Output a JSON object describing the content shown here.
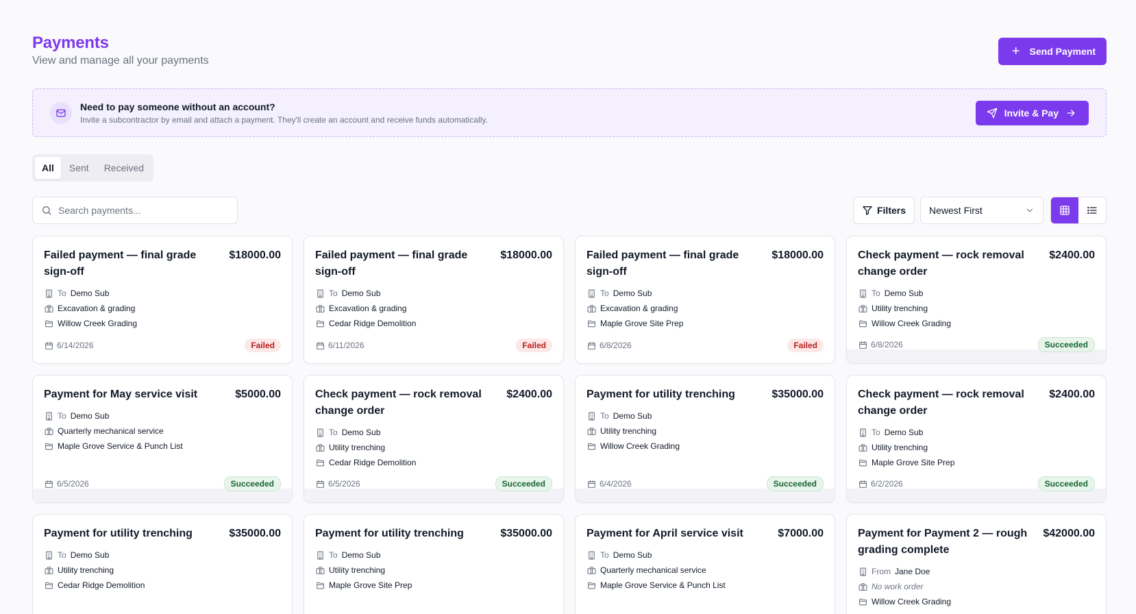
{
  "header": {
    "title": "Payments",
    "subtitle": "View and manage all your payments",
    "send_label": "Send Payment"
  },
  "banner": {
    "title": "Need to pay someone without an account?",
    "description": "Invite a subcontractor by email and attach a payment. They'll create an account and receive funds automatically.",
    "button_label": "Invite & Pay"
  },
  "tabs": [
    {
      "label": "All",
      "active": true
    },
    {
      "label": "Sent",
      "active": false
    },
    {
      "label": "Received",
      "active": false
    }
  ],
  "toolbar": {
    "search_placeholder": "Search payments...",
    "filters_label": "Filters",
    "sort_value": "Newest First",
    "view_mode": "grid"
  },
  "colors": {
    "accent": "#7c3aed",
    "failed": "#b91c1c",
    "succeeded": "#166534"
  },
  "payments": [
    {
      "title": "Failed payment — final grade sign-off",
      "amount": "$18000.00",
      "direction": "To",
      "party": "Demo Sub",
      "work_order": "Excavation & grading",
      "project": "Willow Creek Grading",
      "date": "6/14/2026",
      "status": "Failed"
    },
    {
      "title": "Failed payment — final grade sign-off",
      "amount": "$18000.00",
      "direction": "To",
      "party": "Demo Sub",
      "work_order": "Excavation & grading",
      "project": "Cedar Ridge Demolition",
      "date": "6/11/2026",
      "status": "Failed"
    },
    {
      "title": "Failed payment — final grade sign-off",
      "amount": "$18000.00",
      "direction": "To",
      "party": "Demo Sub",
      "work_order": "Excavation & grading",
      "project": "Maple Grove Site Prep",
      "date": "6/8/2026",
      "status": "Failed"
    },
    {
      "title": "Check payment — rock removal change order",
      "amount": "$2400.00",
      "direction": "To",
      "party": "Demo Sub",
      "work_order": "Utility trenching",
      "project": "Willow Creek Grading",
      "date": "6/8/2026",
      "status": "Succeeded"
    },
    {
      "title": "Payment for May service visit",
      "amount": "$5000.00",
      "direction": "To",
      "party": "Demo Sub",
      "work_order": "Quarterly mechanical service",
      "project": "Maple Grove Service & Punch List",
      "date": "6/5/2026",
      "status": "Succeeded"
    },
    {
      "title": "Check payment — rock removal change order",
      "amount": "$2400.00",
      "direction": "To",
      "party": "Demo Sub",
      "work_order": "Utility trenching",
      "project": "Cedar Ridge Demolition",
      "date": "6/5/2026",
      "status": "Succeeded"
    },
    {
      "title": "Payment for utility trenching",
      "amount": "$35000.00",
      "direction": "To",
      "party": "Demo Sub",
      "work_order": "Utility trenching",
      "project": "Willow Creek Grading",
      "date": "6/4/2026",
      "status": "Succeeded"
    },
    {
      "title": "Check payment — rock removal change order",
      "amount": "$2400.00",
      "direction": "To",
      "party": "Demo Sub",
      "work_order": "Utility trenching",
      "project": "Maple Grove Site Prep",
      "date": "6/2/2026",
      "status": "Succeeded"
    },
    {
      "title": "Payment for utility trenching",
      "amount": "$35000.00",
      "direction": "To",
      "party": "Demo Sub",
      "work_order": "Utility trenching",
      "project": "Cedar Ridge Demolition",
      "date": "",
      "status": ""
    },
    {
      "title": "Payment for utility trenching",
      "amount": "$35000.00",
      "direction": "To",
      "party": "Demo Sub",
      "work_order": "Utility trenching",
      "project": "Maple Grove Site Prep",
      "date": "",
      "status": ""
    },
    {
      "title": "Payment for April service visit",
      "amount": "$7000.00",
      "direction": "To",
      "party": "Demo Sub",
      "work_order": "Quarterly mechanical service",
      "project": "Maple Grove Service & Punch List",
      "date": "",
      "status": ""
    },
    {
      "title": "Payment for Payment 2 — rough grading complete",
      "amount": "$42000.00",
      "direction": "From",
      "party": "Jane Doe",
      "work_order": "No work order",
      "work_order_missing": true,
      "project": "Willow Creek Grading",
      "date": "",
      "status": ""
    }
  ]
}
